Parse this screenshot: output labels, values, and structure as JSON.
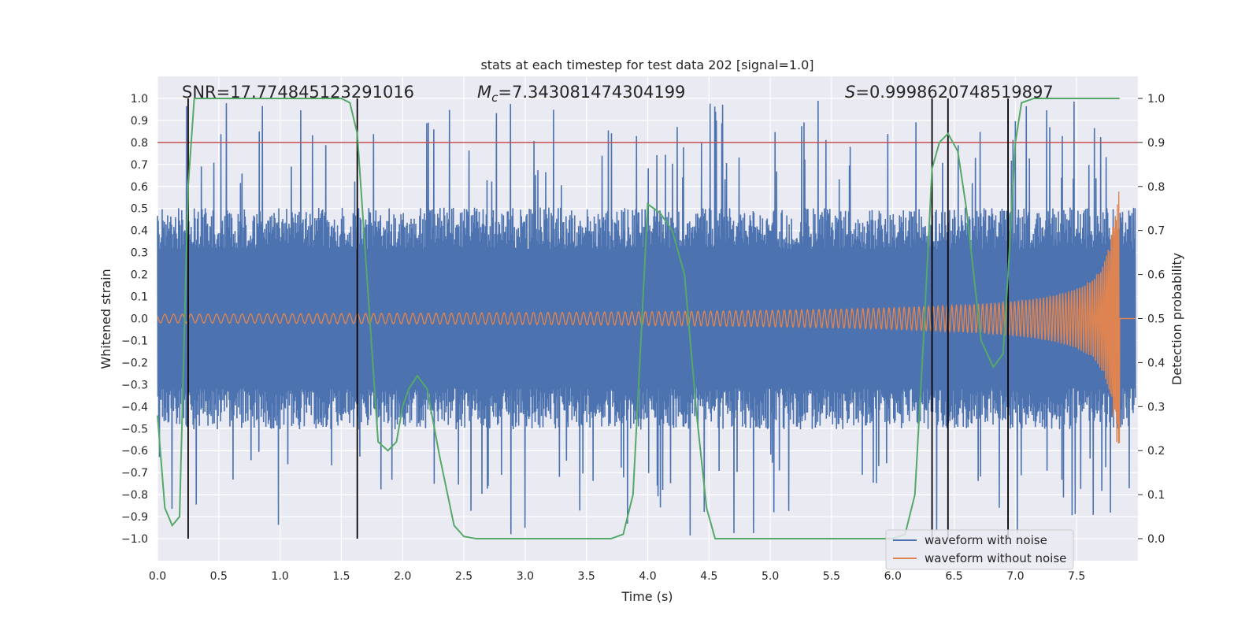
{
  "chart_data": {
    "type": "line",
    "title": "stats at each timestep for test data 202 [signal=1.0]",
    "xlabel": "Time (s)",
    "ylabel_left": "Whitened strain",
    "ylabel_right": "Detection probability",
    "xlim": [
      0.0,
      8.0
    ],
    "ylim_left": [
      -1.1,
      1.1
    ],
    "ylim_right": [
      -0.05,
      1.05
    ],
    "x_ticks": [
      "0.0",
      "0.5",
      "1.0",
      "1.5",
      "2.0",
      "2.5",
      "3.0",
      "3.5",
      "4.0",
      "4.5",
      "5.0",
      "5.5",
      "6.0",
      "6.5",
      "7.0",
      "7.5"
    ],
    "y_ticks_left": [
      "1.0",
      "0.9",
      "0.8",
      "0.7",
      "0.6",
      "0.5",
      "0.4",
      "0.3",
      "0.2",
      "0.1",
      "0.0",
      "−0.1",
      "−0.2",
      "−0.3",
      "−0.4",
      "−0.5",
      "−0.6",
      "−0.7",
      "−0.8",
      "−0.9",
      "−1.0"
    ],
    "y_ticks_right": [
      "1.0",
      "0.9",
      "0.8",
      "0.7",
      "0.6",
      "0.5",
      "0.4",
      "0.3",
      "0.2",
      "0.1",
      "0.0"
    ],
    "annotations": {
      "snr": "SNR=17.774845123291016",
      "mc_symbol": "M",
      "mc_sub": "c",
      "mc_value": "=7.343081474304199",
      "s_symbol": "S",
      "s_value": "=0.9998620748519897"
    },
    "threshold": {
      "value": 0.9,
      "axis": "right",
      "color": "#c44e52"
    },
    "vertical_lines": [
      0.25,
      1.63,
      6.32,
      6.45,
      6.94
    ],
    "colors": {
      "noise": "#4c72b0",
      "clean": "#dd8452",
      "prob": "#55a868",
      "vline": "#000000",
      "background": "#eaeaf2",
      "grid": "#ffffff"
    },
    "series": [
      {
        "name": "waveform with noise",
        "kind": "noise",
        "envelope": 0.42,
        "peak_max": 0.99
      },
      {
        "name": "waveform without noise",
        "kind": "chirp",
        "start_amp": 0.02,
        "end_amp": 0.58,
        "t_end": 7.85
      },
      {
        "name": "Detection probability",
        "axis": "right",
        "x": [
          0.0,
          0.06,
          0.12,
          0.18,
          0.25,
          0.3,
          0.5,
          1.0,
          1.5,
          1.57,
          1.63,
          1.72,
          1.8,
          1.88,
          1.95,
          2.0,
          2.05,
          2.12,
          2.2,
          2.3,
          2.42,
          2.5,
          2.6,
          3.0,
          3.5,
          3.7,
          3.8,
          3.88,
          3.95,
          4.0,
          4.1,
          4.2,
          4.3,
          4.4,
          4.48,
          4.55,
          5.0,
          5.5,
          6.0,
          6.1,
          6.18,
          6.25,
          6.32,
          6.38,
          6.45,
          6.53,
          6.6,
          6.72,
          6.82,
          6.9,
          6.94,
          7.0,
          7.05,
          7.15,
          7.5,
          7.85
        ],
        "y": [
          0.28,
          0.07,
          0.03,
          0.05,
          0.8,
          1.0,
          1.0,
          1.0,
          1.0,
          0.99,
          0.92,
          0.55,
          0.22,
          0.2,
          0.22,
          0.3,
          0.34,
          0.37,
          0.34,
          0.19,
          0.03,
          0.005,
          0.0,
          0.0,
          0.0,
          0.0,
          0.01,
          0.1,
          0.48,
          0.76,
          0.74,
          0.7,
          0.6,
          0.28,
          0.07,
          0.0,
          0.0,
          0.0,
          0.0,
          0.01,
          0.1,
          0.45,
          0.84,
          0.9,
          0.92,
          0.88,
          0.75,
          0.45,
          0.39,
          0.42,
          0.6,
          0.9,
          0.99,
          1.0,
          1.0,
          1.0
        ]
      }
    ]
  }
}
